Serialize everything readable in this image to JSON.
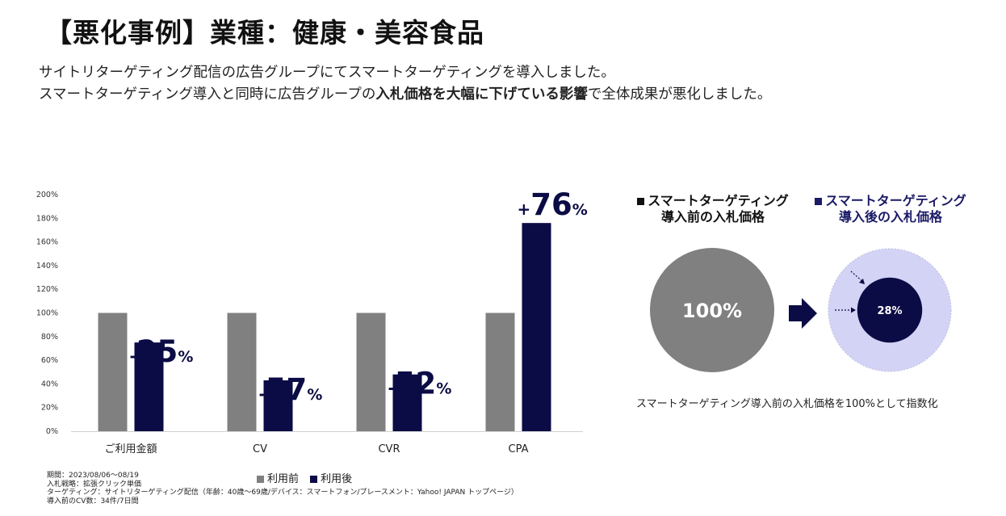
{
  "title": "【悪化事例】業種：健康・美容食品",
  "lead": {
    "line1": "サイトリターゲティング配信の広告グループにてスマートターゲティングを導入しました。",
    "line2_pre": "スマートターゲティング導入と同時に広告グループの",
    "line2_bold": "入札価格を大幅に下げている影響",
    "line2_post": "で全体成果が悪化しました。"
  },
  "colors": {
    "before": "#808080",
    "after": "#0b0b45",
    "ring": "#d3d3f5"
  },
  "chart_data": {
    "type": "bar",
    "categories": [
      "ご利用金額",
      "CV",
      "CVR",
      "CPA"
    ],
    "series": [
      {
        "name": "利用前",
        "values": [
          100,
          100,
          100,
          100
        ]
      },
      {
        "name": "利用後",
        "values": [
          75,
          43,
          48,
          176
        ]
      }
    ],
    "yticks": [
      "0%",
      "20%",
      "40%",
      "60%",
      "80%",
      "100%",
      "120%",
      "140%",
      "160%",
      "180%",
      "200%"
    ],
    "ylim": [
      0,
      200
    ],
    "annotations": [
      {
        "sign": "-",
        "number": "25",
        "unit": "%"
      },
      {
        "sign": "-",
        "number": "57",
        "unit": "%"
      },
      {
        "sign": "-",
        "number": "52",
        "unit": "%"
      },
      {
        "sign": "+",
        "number": "76",
        "unit": "%"
      }
    ],
    "legend_position": "bottom"
  },
  "notes": [
    "期間：2023/08/06～08/19",
    "入札戦略：拡張クリック単価",
    "ターゲティング：サイトリターゲティング配信（年齢：40歳～69歳/デバイス：スマートフォン/プレースメント：Yahoo! JAPAN トップページ）",
    "導入前のCV数：34件/7日間"
  ],
  "bid": {
    "before_label_1": "スマートターゲティング",
    "before_label_2": "導入前の入札価格",
    "after_label_1": "スマートターゲティング",
    "after_label_2": "導入後の入札価格",
    "before_value": "100%",
    "after_value": "28%",
    "after_ratio": 0.28,
    "note": "スマートターゲティング導入前の入札価格を100%として指数化"
  }
}
